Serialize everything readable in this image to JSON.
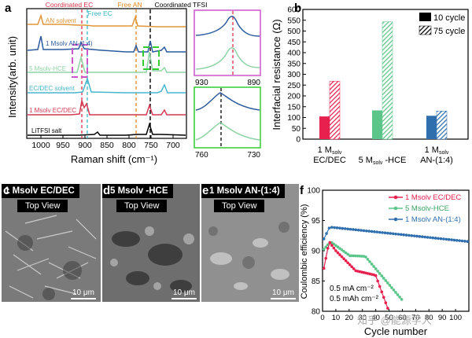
{
  "panel_a": {
    "letter": "a",
    "annotations": [
      {
        "text": "Coordinated EC",
        "color": "#d9334a"
      },
      {
        "text": "Free EC",
        "color": "#3cb5c8"
      },
      {
        "text": "Free AN",
        "color": "#e08a1e"
      },
      {
        "text": "Coordinated TFSI",
        "color": "#000000"
      }
    ],
    "ylabel": "Intensity(arb. unit)",
    "xlabel": "Raman shift (cm⁻¹)",
    "xticks": [
      "1000",
      "950",
      "900",
      "850",
      "800",
      "750",
      "700"
    ],
    "curves": [
      {
        "label": "AN solvent",
        "color": "#e0953a"
      },
      {
        "label": "1 Msolv AN-(1:4)",
        "color": "#2c5a9e"
      },
      {
        "label": "5 Msolv-HCE",
        "color": "#8ed3a5"
      },
      {
        "label": "EC/DEC solvent",
        "color": "#48b6cf"
      },
      {
        "label": "1 Msolv EC/DEC",
        "color": "#d43a52"
      },
      {
        "label": "LiTFSI salt",
        "color": "#000000"
      }
    ],
    "inset_top": {
      "xticks": [
        "930",
        "890"
      ]
    },
    "inset_bottom": {
      "xticks": [
        "760",
        "730"
      ]
    }
  },
  "chart_data": [
    {
      "type": "bar",
      "title": "",
      "ylabel": "Interfacial resistance (Ω)",
      "ylim": [
        0,
        600
      ],
      "yticks": [
        "0",
        "50",
        "100",
        "150",
        "200",
        "250",
        "300",
        "350",
        "400",
        "450",
        "500",
        "550",
        "600"
      ],
      "categories": [
        "1 Msolv EC/DEC",
        "5 Msolv-HCE",
        "1 Msolv AN-(1:4)"
      ],
      "series": [
        {
          "name": "10 cycle",
          "values": [
            105,
            133,
            108
          ]
        },
        {
          "name": "75 cycle",
          "values": [
            268,
            543,
            130
          ]
        }
      ],
      "colors": [
        "#e8204e",
        "#5cc68a",
        "#2f6fae"
      ]
    },
    {
      "type": "scatter",
      "ylabel": "Coulombic efficiency (%)",
      "xlabel": "Cycle number",
      "xlim": [
        0,
        110
      ],
      "ylim": [
        80,
        100
      ],
      "xticks": [
        "0",
        "10",
        "20",
        "30",
        "40",
        "50",
        "60",
        "70",
        "80",
        "90",
        "100"
      ],
      "yticks": [
        "80",
        "85",
        "90",
        "95",
        "100"
      ],
      "legend": [
        "1 Msolv EC/DEC",
        "5 Msolv-HCE",
        "1 Msolv AN-(1:4)"
      ]
    }
  ],
  "panel_b": {
    "letter": "b",
    "legend": [
      "10 cycle",
      "75 cycle"
    ],
    "cat_labels": [
      [
        "1 M",
        "solv",
        " "
      ],
      [
        "5 M",
        "solv",
        " -HCE"
      ],
      [
        "1 M",
        "solv",
        " "
      ]
    ],
    "cat_second": [
      "EC/DEC",
      "",
      "AN-(1:4)"
    ]
  },
  "panel_c": {
    "letter": "c",
    "title": "1 Msolv EC/DEC",
    "sub": "Top View",
    "scale": "10 μm"
  },
  "panel_d": {
    "letter": "d",
    "title": "5 Msolv -HCE",
    "sub": "Top View",
    "scale": "10 μm"
  },
  "panel_e": {
    "letter": "e",
    "title": "1 Msolv AN-(1:4)",
    "sub": "Top View",
    "scale": "10 μm"
  },
  "panel_f": {
    "letter": "f",
    "note1": "0.5 mA cm⁻²",
    "note2": "0.5 mAh cm⁻²"
  },
  "watermark": "知乎 @能源学人"
}
